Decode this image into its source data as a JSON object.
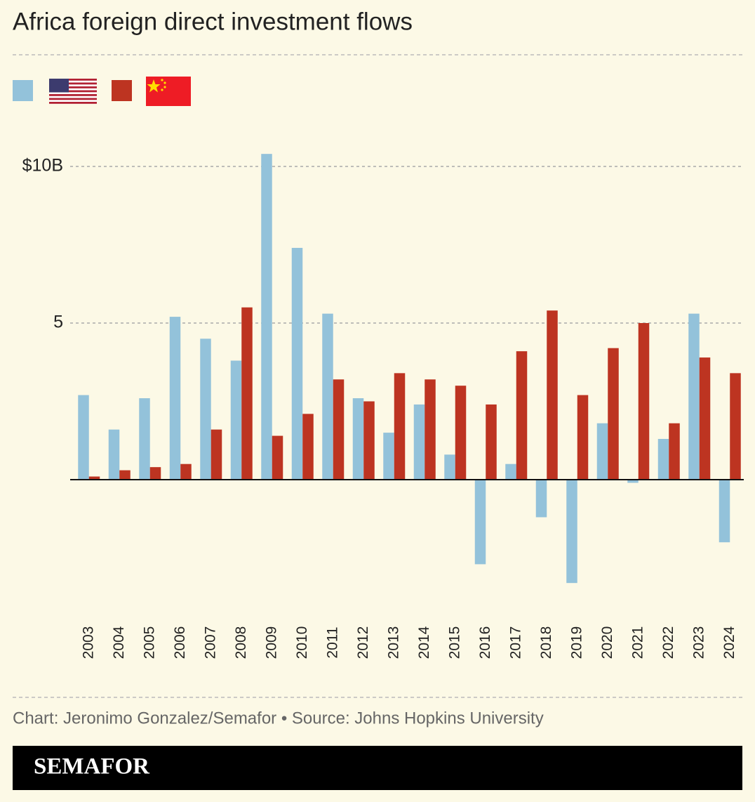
{
  "chart_data": {
    "type": "bar",
    "title": "Africa foreign direct investment flows",
    "source": "Chart: Jeronimo Gonzalez/Semafor • Source: Johns Hopkins University",
    "brand": "SEMAFOR",
    "categories": [
      "2003",
      "2004",
      "2005",
      "2006",
      "2007",
      "2008",
      "2009",
      "2010",
      "2011",
      "2012",
      "2013",
      "2014",
      "2015",
      "2016",
      "2017",
      "2018",
      "2019",
      "2020",
      "2021",
      "2022",
      "2023",
      "2024"
    ],
    "series": [
      {
        "color": "#93c2da",
        "values": [
          2.7,
          1.6,
          2.6,
          5.2,
          4.5,
          3.8,
          10.4,
          7.4,
          5.3,
          2.6,
          1.5,
          2.4,
          0.8,
          -2.7,
          0.5,
          -1.2,
          -3.3,
          1.8,
          -0.1,
          1.3,
          5.3,
          -2.0
        ]
      },
      {
        "color": "#bd3421",
        "values": [
          0.1,
          0.3,
          0.4,
          0.5,
          1.6,
          5.5,
          1.4,
          2.1,
          3.2,
          2.5,
          3.4,
          3.2,
          3.0,
          2.4,
          4.1,
          5.4,
          2.7,
          4.2,
          5.0,
          1.8,
          3.9,
          3.4
        ]
      }
    ],
    "ylim": [
      -4,
      11
    ],
    "yticks": [
      5,
      {
        "value": 10,
        "label": "$10B"
      }
    ],
    "grid": true
  }
}
